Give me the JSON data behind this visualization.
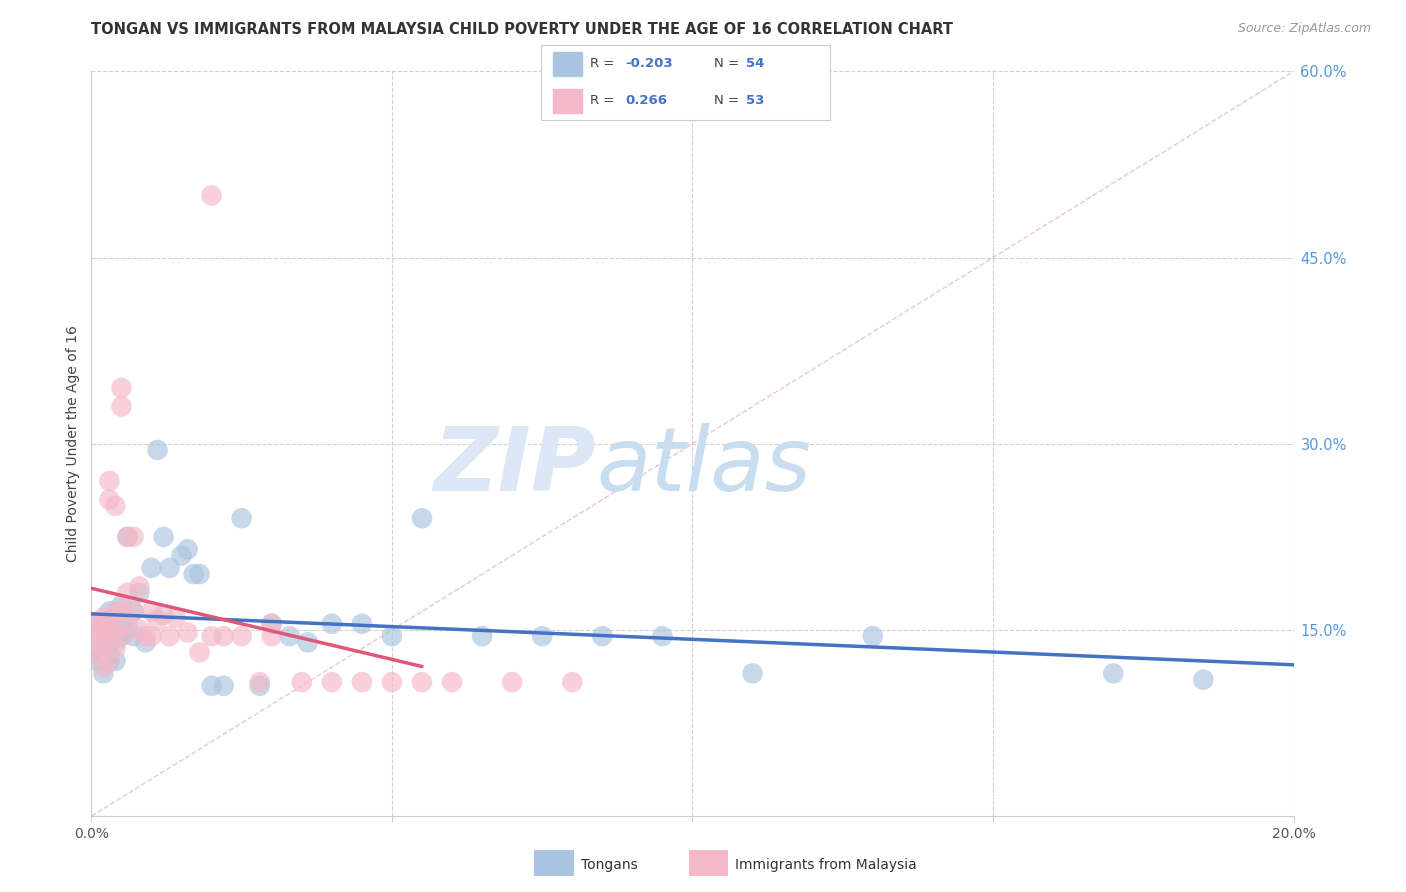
{
  "title": "TONGAN VS IMMIGRANTS FROM MALAYSIA CHILD POVERTY UNDER THE AGE OF 16 CORRELATION CHART",
  "source": "Source: ZipAtlas.com",
  "ylabel": "Child Poverty Under the Age of 16",
  "xlim": [
    0.0,
    0.2
  ],
  "ylim": [
    0.0,
    0.6
  ],
  "xtick_positions": [
    0.0,
    0.05,
    0.1,
    0.15,
    0.2
  ],
  "xticklabels": [
    "0.0%",
    "",
    "",
    "",
    "20.0%"
  ],
  "yticks_right": [
    0.15,
    0.3,
    0.45,
    0.6
  ],
  "ytick_labels_right": [
    "15.0%",
    "30.0%",
    "45.0%",
    "60.0%"
  ],
  "watermark_zip": "ZIP",
  "watermark_atlas": "atlas",
  "legend_r_tongans": "-0.203",
  "legend_n_tongans": "54",
  "legend_r_malaysia": "0.266",
  "legend_n_malaysia": "53",
  "tongans_color": "#a8c4e0",
  "malaysia_color": "#f4b8c8",
  "tongans_line_color": "#4472c4",
  "malaysia_line_color": "#e05878",
  "diag_line_color": "#e8b0be",
  "background_color": "#ffffff",
  "grid_color": "#d0d0d0",
  "tongans_x": [
    0.001,
    0.001,
    0.001,
    0.001,
    0.002,
    0.002,
    0.002,
    0.002,
    0.002,
    0.003,
    0.003,
    0.003,
    0.003,
    0.003,
    0.004,
    0.004,
    0.004,
    0.004,
    0.005,
    0.005,
    0.005,
    0.006,
    0.006,
    0.007,
    0.007,
    0.008,
    0.009,
    0.01,
    0.011,
    0.012,
    0.013,
    0.015,
    0.016,
    0.017,
    0.018,
    0.02,
    0.022,
    0.025,
    0.028,
    0.03,
    0.033,
    0.036,
    0.04,
    0.045,
    0.05,
    0.055,
    0.065,
    0.075,
    0.085,
    0.095,
    0.11,
    0.13,
    0.17,
    0.185
  ],
  "tongans_y": [
    0.155,
    0.145,
    0.135,
    0.125,
    0.155,
    0.145,
    0.135,
    0.125,
    0.115,
    0.165,
    0.155,
    0.14,
    0.13,
    0.125,
    0.16,
    0.15,
    0.14,
    0.125,
    0.17,
    0.155,
    0.145,
    0.225,
    0.15,
    0.165,
    0.145,
    0.18,
    0.14,
    0.2,
    0.295,
    0.225,
    0.2,
    0.21,
    0.215,
    0.195,
    0.195,
    0.105,
    0.105,
    0.24,
    0.105,
    0.155,
    0.145,
    0.14,
    0.155,
    0.155,
    0.145,
    0.24,
    0.145,
    0.145,
    0.145,
    0.145,
    0.115,
    0.145,
    0.115,
    0.11
  ],
  "malaysia_x": [
    0.001,
    0.001,
    0.001,
    0.001,
    0.002,
    0.002,
    0.002,
    0.002,
    0.002,
    0.003,
    0.003,
    0.003,
    0.003,
    0.003,
    0.004,
    0.004,
    0.004,
    0.004,
    0.005,
    0.005,
    0.005,
    0.005,
    0.006,
    0.006,
    0.006,
    0.007,
    0.007,
    0.008,
    0.008,
    0.009,
    0.01,
    0.01,
    0.011,
    0.012,
    0.013,
    0.014,
    0.016,
    0.018,
    0.02,
    0.022,
    0.025,
    0.028,
    0.03,
    0.035,
    0.04,
    0.045,
    0.05,
    0.055,
    0.06,
    0.07,
    0.08,
    0.02,
    0.03
  ],
  "malaysia_y": [
    0.155,
    0.145,
    0.14,
    0.13,
    0.16,
    0.155,
    0.145,
    0.135,
    0.12,
    0.27,
    0.255,
    0.155,
    0.145,
    0.125,
    0.25,
    0.165,
    0.15,
    0.135,
    0.345,
    0.33,
    0.165,
    0.145,
    0.225,
    0.18,
    0.155,
    0.225,
    0.165,
    0.185,
    0.15,
    0.145,
    0.165,
    0.145,
    0.158,
    0.162,
    0.145,
    0.16,
    0.148,
    0.132,
    0.145,
    0.145,
    0.145,
    0.108,
    0.145,
    0.108,
    0.108,
    0.108,
    0.108,
    0.108,
    0.108,
    0.108,
    0.108,
    0.5,
    0.155
  ]
}
